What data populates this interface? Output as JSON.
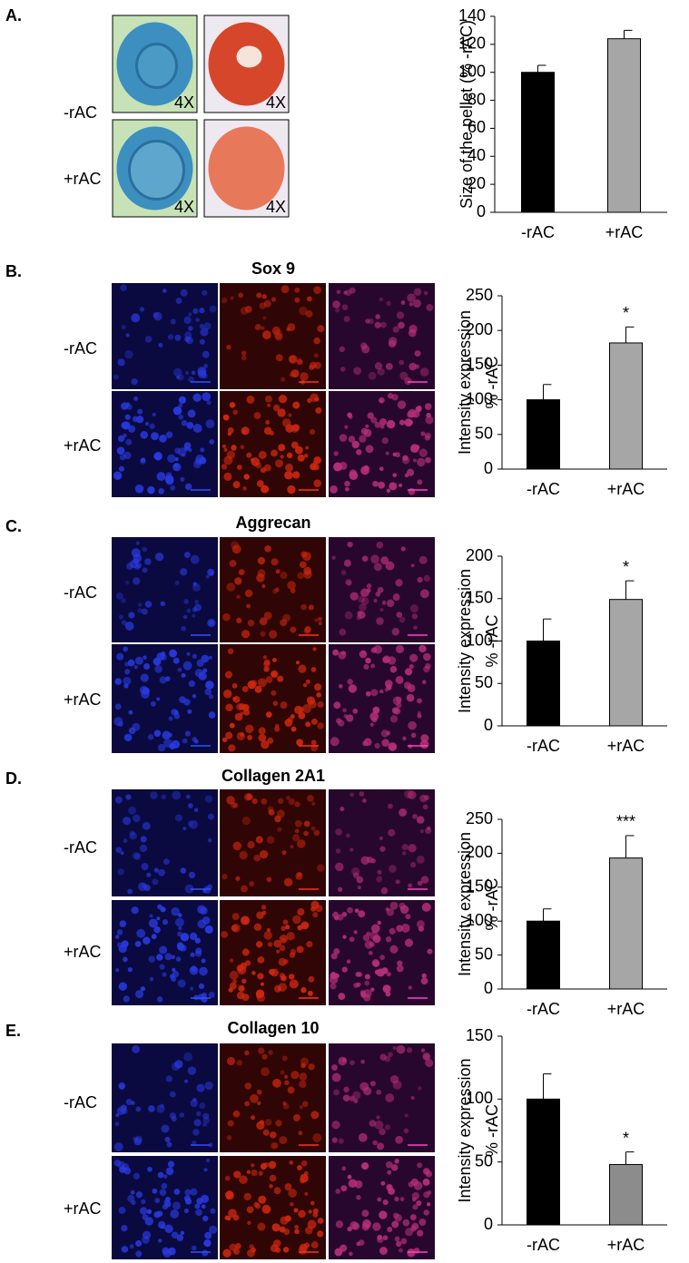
{
  "panels": [
    {
      "label": "A.",
      "rows": [
        "-rAC",
        "+rAC"
      ],
      "magnification": [
        "4X",
        "4X",
        "4X",
        "4X"
      ]
    },
    {
      "label": "B.",
      "title": "Sox 9",
      "rows": [
        "-rAC",
        "+rAC"
      ]
    },
    {
      "label": "C.",
      "title": "Aggrecan",
      "rows": [
        "-rAC",
        "+rAC"
      ]
    },
    {
      "label": "D.",
      "title": "Collagen 2A1",
      "rows": [
        "-rAC",
        "+rAC"
      ]
    },
    {
      "label": "E.",
      "title": "Collagen 10",
      "rows": [
        "-rAC",
        "+rAC"
      ]
    }
  ],
  "chart_data": [
    {
      "type": "bar",
      "ylabel": [
        "Size of the pellet (%  -rAC)"
      ],
      "categories": [
        "-rAC",
        "+rAC"
      ],
      "values": [
        100,
        124
      ],
      "errors": [
        5,
        6
      ],
      "colors": [
        "#000000",
        "#a6a6a6"
      ],
      "ylim": [
        0,
        140
      ],
      "yticks": [
        0,
        20,
        40,
        60,
        80,
        100,
        120,
        140
      ]
    },
    {
      "type": "bar",
      "ylabel": [
        "Intensity expression",
        "% -rAC"
      ],
      "categories": [
        "-rAC",
        "+rAC"
      ],
      "values": [
        100,
        182
      ],
      "errors": [
        22,
        23
      ],
      "colors": [
        "#000000",
        "#a6a6a6"
      ],
      "ylim": [
        0,
        250
      ],
      "yticks": [
        0,
        50,
        100,
        150,
        200,
        250
      ],
      "annotations": [
        {
          "x": "+rAC",
          "text": "*"
        }
      ]
    },
    {
      "type": "bar",
      "ylabel": [
        "Intensity expression",
        "% -rAC"
      ],
      "categories": [
        "-rAC",
        "+rAC"
      ],
      "values": [
        100,
        149
      ],
      "errors": [
        26,
        22
      ],
      "colors": [
        "#000000",
        "#a6a6a6"
      ],
      "ylim": [
        0,
        200
      ],
      "yticks": [
        0,
        50,
        100,
        150,
        200
      ],
      "annotations": [
        {
          "x": "+rAC",
          "text": "*"
        }
      ]
    },
    {
      "type": "bar",
      "ylabel": [
        "Intensity expression",
        "% -rAC"
      ],
      "categories": [
        "-rAC",
        "+rAC"
      ],
      "values": [
        100,
        193
      ],
      "errors": [
        18,
        33
      ],
      "colors": [
        "#000000",
        "#a6a6a6"
      ],
      "ylim": [
        0,
        250
      ],
      "yticks": [
        0,
        50,
        100,
        150,
        200,
        250
      ],
      "annotations": [
        {
          "x": "+rAC",
          "text": "***"
        }
      ]
    },
    {
      "type": "bar",
      "ylabel": [
        "Intensity expression",
        "% -rAC"
      ],
      "categories": [
        "-rAC",
        "+rAC"
      ],
      "values": [
        100,
        48
      ],
      "errors": [
        20,
        10
      ],
      "colors": [
        "#000000",
        "#8c8c8c"
      ],
      "ylim": [
        0,
        150
      ],
      "yticks": [
        0,
        50,
        100,
        150
      ],
      "annotations": [
        {
          "x": "+rAC",
          "text": "*"
        }
      ]
    }
  ]
}
